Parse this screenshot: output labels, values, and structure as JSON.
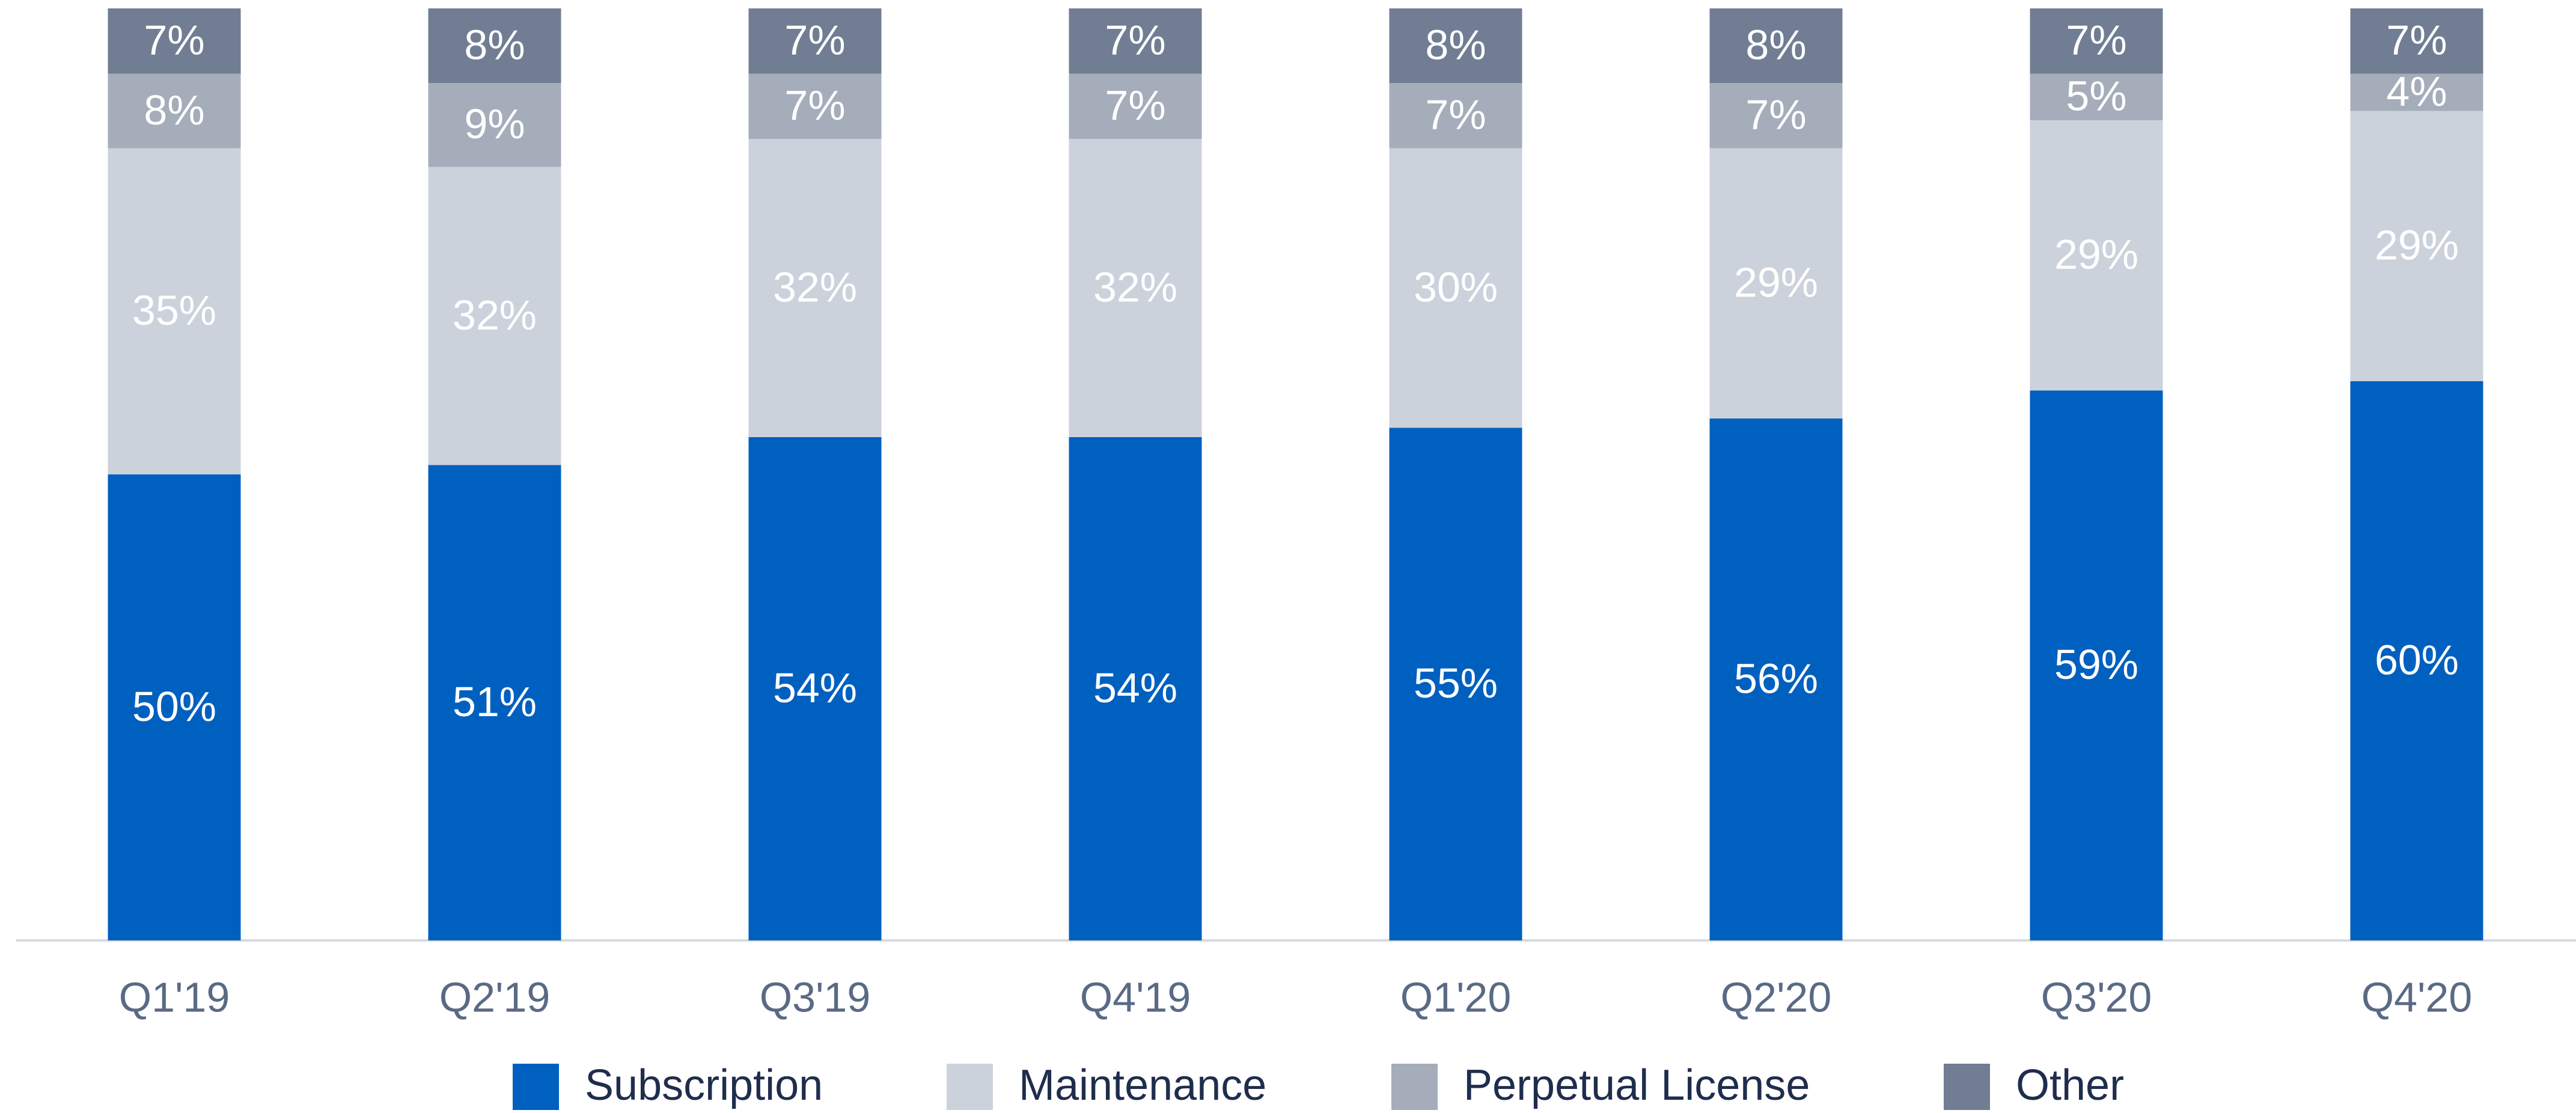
{
  "chart_data": {
    "type": "bar",
    "stacked": true,
    "categories": [
      "Q1'19",
      "Q2'19",
      "Q3'19",
      "Q4'19",
      "Q1'20",
      "Q2'20",
      "Q3'20",
      "Q4'20"
    ],
    "series": [
      {
        "name": "Subscription",
        "color": "#0060c0",
        "values": [
          50,
          51,
          54,
          54,
          55,
          56,
          59,
          60
        ],
        "value_labels": [
          "50%",
          "51%",
          "54%",
          "54%",
          "55%",
          "56%",
          "59%",
          "60%"
        ]
      },
      {
        "name": "Maintenance",
        "color": "#ccd2db",
        "values": [
          35,
          32,
          32,
          32,
          30,
          29,
          29,
          29
        ],
        "value_labels": [
          "35%",
          "32%",
          "32%",
          "32%",
          "30%",
          "29%",
          "29%",
          "29%"
        ]
      },
      {
        "name": "Perpetual License",
        "color": "#a5adba",
        "values": [
          8,
          9,
          7,
          7,
          7,
          7,
          5,
          4
        ],
        "value_labels": [
          "8%",
          "9%",
          "7%",
          "7%",
          "7%",
          "7%",
          "5%",
          "4%"
        ]
      },
      {
        "name": "Other",
        "color": "#717d93",
        "values": [
          7,
          8,
          7,
          7,
          8,
          8,
          7,
          7
        ],
        "value_labels": [
          "7%",
          "8%",
          "7%",
          "7%",
          "8%",
          "8%",
          "7%",
          "7%"
        ]
      }
    ],
    "ylim": [
      0,
      100
    ]
  }
}
